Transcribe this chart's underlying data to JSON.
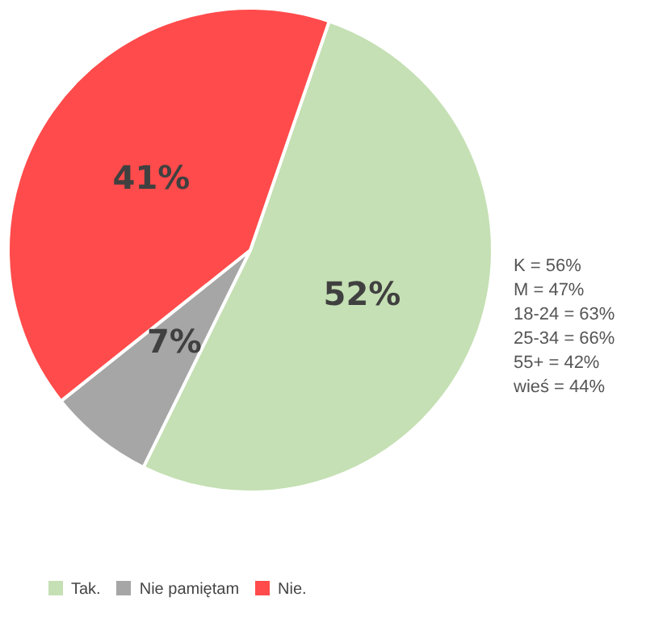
{
  "chart_data": {
    "type": "pie",
    "categories": [
      "Tak.",
      "Nie pamiętam",
      "Nie."
    ],
    "values": [
      52,
      7,
      41
    ],
    "colors": [
      "#c5e0b4",
      "#a6a6a6",
      "#ff4b4b"
    ],
    "value_labels": [
      "52%",
      "7%",
      "41%"
    ],
    "legend": "bottom left",
    "annotations": [
      "K = 56%",
      "M = 47%",
      "18-24 = 63%",
      "25-34 = 66%",
      "55+ = 42%",
      "wieś = 44%"
    ]
  }
}
